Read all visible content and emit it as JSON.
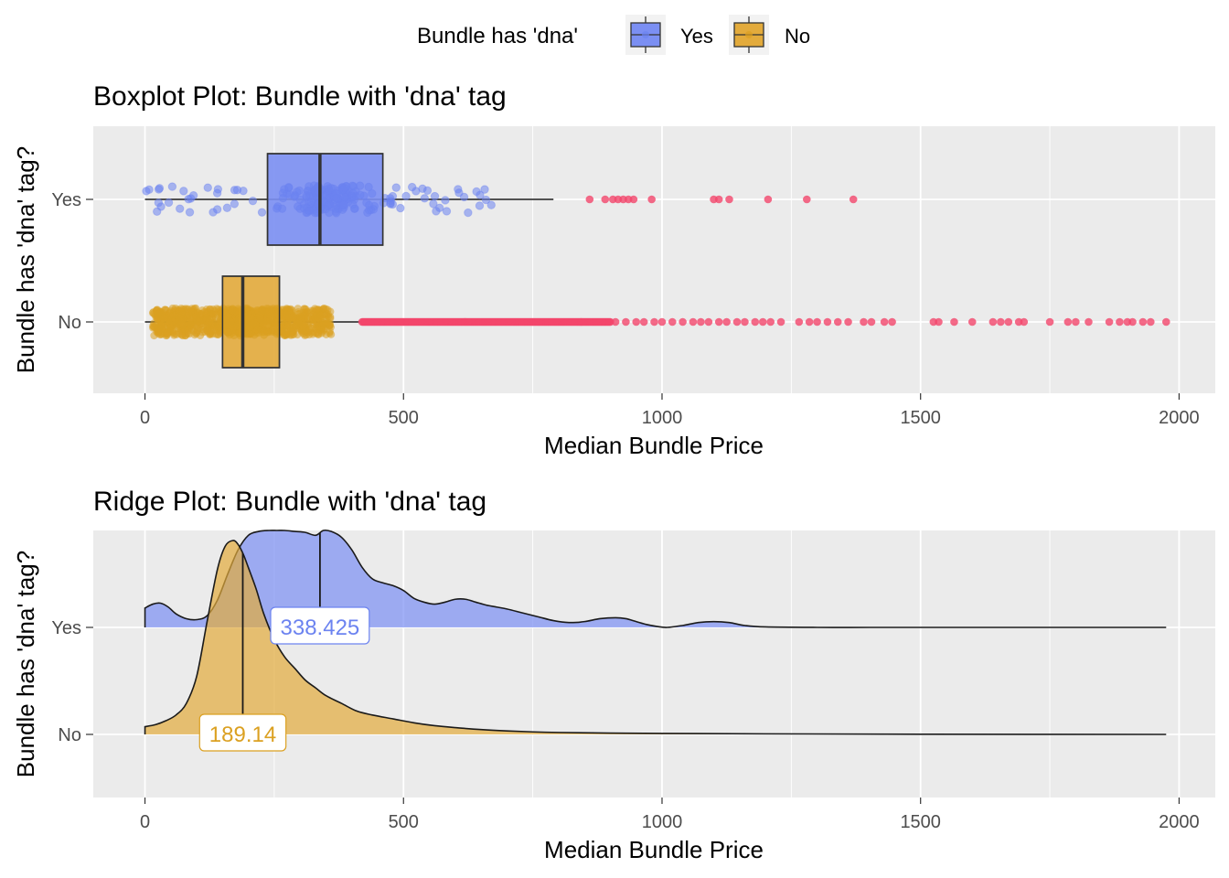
{
  "legend": {
    "title": "Bundle has 'dna'",
    "items": [
      {
        "label": "Yes",
        "fill": "#7b8ff3",
        "point": "#6c83f0"
      },
      {
        "label": "No",
        "fill": "#e3ab3c",
        "point": "#dba021"
      }
    ]
  },
  "colors": {
    "panel_bg": "#ebebeb",
    "grid": "#ffffff",
    "outlier": "#f2466b",
    "yes_fill": "#7b8ff3",
    "no_fill": "#e3ab3c",
    "yes_point": "#6c83f0",
    "no_point": "#dba021",
    "line": "#1a1a1a"
  },
  "chart_data": [
    {
      "type": "boxplot",
      "title": "Boxplot Plot: Bundle with 'dna' tag",
      "xlabel": "Median Bundle Price",
      "ylabel": "Bundle has 'dna' tag?",
      "xlim": [
        -100,
        2070
      ],
      "xticks": [
        0,
        500,
        1000,
        1500,
        2000
      ],
      "categories": [
        "Yes",
        "No"
      ],
      "grid": true,
      "series": [
        {
          "name": "Yes",
          "whisker_low": 0,
          "q1": 237,
          "median": 338.425,
          "q3": 460,
          "whisker_high": 790,
          "jitter_range": [
            0,
            670
          ],
          "outliers": [
            860,
            890,
            905,
            915,
            925,
            935,
            945,
            980,
            1100,
            1110,
            1130,
            1205,
            1280,
            1370
          ]
        },
        {
          "name": "No",
          "whisker_low": 0,
          "q1": 150,
          "median": 189.14,
          "q3": 260,
          "whisker_high": 420,
          "jitter_range": [
            15,
            360
          ],
          "outliers_dense_range": [
            420,
            900
          ],
          "outliers": [
            910,
            930,
            950,
            965,
            985,
            1000,
            1020,
            1040,
            1060,
            1075,
            1090,
            1110,
            1125,
            1145,
            1160,
            1180,
            1195,
            1210,
            1230,
            1265,
            1285,
            1300,
            1320,
            1340,
            1360,
            1390,
            1405,
            1430,
            1445,
            1525,
            1535,
            1565,
            1600,
            1640,
            1655,
            1670,
            1690,
            1700,
            1750,
            1785,
            1800,
            1825,
            1865,
            1885,
            1900,
            1910,
            1930,
            1945,
            1975
          ]
        }
      ]
    },
    {
      "type": "ridgeline",
      "title": "Ridge Plot: Bundle with 'dna' tag",
      "xlabel": "Median Bundle Price",
      "ylabel": "Bundle has 'dna' tag?",
      "xlim": [
        -100,
        2070
      ],
      "xticks": [
        0,
        500,
        1000,
        1500,
        2000
      ],
      "categories": [
        "Yes",
        "No"
      ],
      "grid": true,
      "series": [
        {
          "name": "Yes",
          "median": 338.425,
          "median_label": "338.425",
          "x": [
            0,
            15,
            30,
            45,
            60,
            80,
            100,
            120,
            140,
            160,
            180,
            200,
            220,
            240,
            255,
            270,
            290,
            310,
            330,
            345,
            360,
            380,
            400,
            420,
            440,
            460,
            480,
            500,
            520,
            540,
            560,
            580,
            600,
            620,
            640,
            660,
            680,
            700,
            730,
            760,
            790,
            820,
            850,
            880,
            910,
            930,
            950,
            970,
            990,
            1010,
            1040,
            1070,
            1100,
            1130,
            1160,
            1200,
            1300,
            1400,
            1500,
            1600,
            1700,
            1800,
            1900,
            1975
          ],
          "density": [
            0.2,
            0.24,
            0.25,
            0.21,
            0.14,
            0.09,
            0.08,
            0.12,
            0.28,
            0.55,
            0.8,
            0.95,
            0.99,
            1.0,
            1.0,
            1.0,
            0.99,
            0.98,
            0.95,
            1.0,
            0.99,
            0.93,
            0.8,
            0.62,
            0.5,
            0.46,
            0.43,
            0.38,
            0.3,
            0.26,
            0.24,
            0.26,
            0.29,
            0.29,
            0.26,
            0.23,
            0.21,
            0.19,
            0.15,
            0.11,
            0.07,
            0.05,
            0.06,
            0.09,
            0.1,
            0.09,
            0.06,
            0.03,
            0.01,
            0.0,
            0.02,
            0.05,
            0.06,
            0.05,
            0.02,
            0.005,
            0.0,
            0.0,
            0.0,
            0.0,
            0.0,
            0.0,
            0.0,
            0.0
          ]
        },
        {
          "name": "No",
          "median": 189.14,
          "median_label": "189.14",
          "x": [
            0,
            20,
            40,
            60,
            80,
            100,
            120,
            140,
            155,
            170,
            180,
            190,
            200,
            215,
            230,
            250,
            270,
            290,
            310,
            330,
            350,
            380,
            410,
            440,
            480,
            520,
            560,
            600,
            650,
            700,
            750,
            800,
            900,
            1000,
            1200,
            1500,
            1975
          ],
          "density": [
            0.04,
            0.05,
            0.07,
            0.1,
            0.16,
            0.3,
            0.58,
            0.85,
            0.97,
            1.0,
            0.98,
            0.93,
            0.86,
            0.75,
            0.62,
            0.49,
            0.4,
            0.34,
            0.28,
            0.24,
            0.2,
            0.16,
            0.12,
            0.1,
            0.08,
            0.06,
            0.045,
            0.035,
            0.025,
            0.018,
            0.013,
            0.01,
            0.007,
            0.005,
            0.003,
            0.001,
            0.0
          ]
        }
      ]
    }
  ]
}
